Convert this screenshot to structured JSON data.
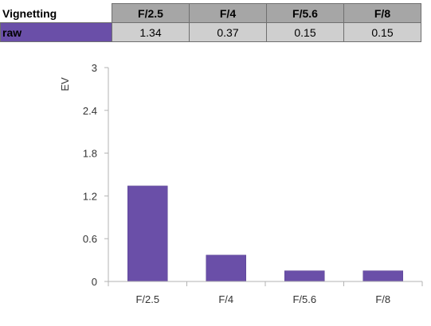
{
  "table": {
    "header": [
      "Vignetting",
      "F/2.5",
      "F/4",
      "F/5.6",
      "F/8"
    ],
    "row_label": "raw",
    "values": [
      "1.34",
      "0.37",
      "0.15",
      "0.15"
    ]
  },
  "colors": {
    "bar": "#6a4fa8",
    "header_bg": "#a6a6a6",
    "value_bg": "#cfcfcf"
  },
  "chart_data": {
    "type": "bar",
    "categories": [
      "F/2.5",
      "F/4",
      "F/5.6",
      "F/8"
    ],
    "values": [
      1.34,
      0.37,
      0.15,
      0.15
    ],
    "title": "",
    "xlabel": "",
    "ylabel": "EV",
    "ylim": [
      0,
      3
    ],
    "yticks": [
      "0",
      "0.6",
      "1.2",
      "1.8",
      "2.4",
      "3"
    ],
    "grid": false,
    "legend": "none"
  }
}
